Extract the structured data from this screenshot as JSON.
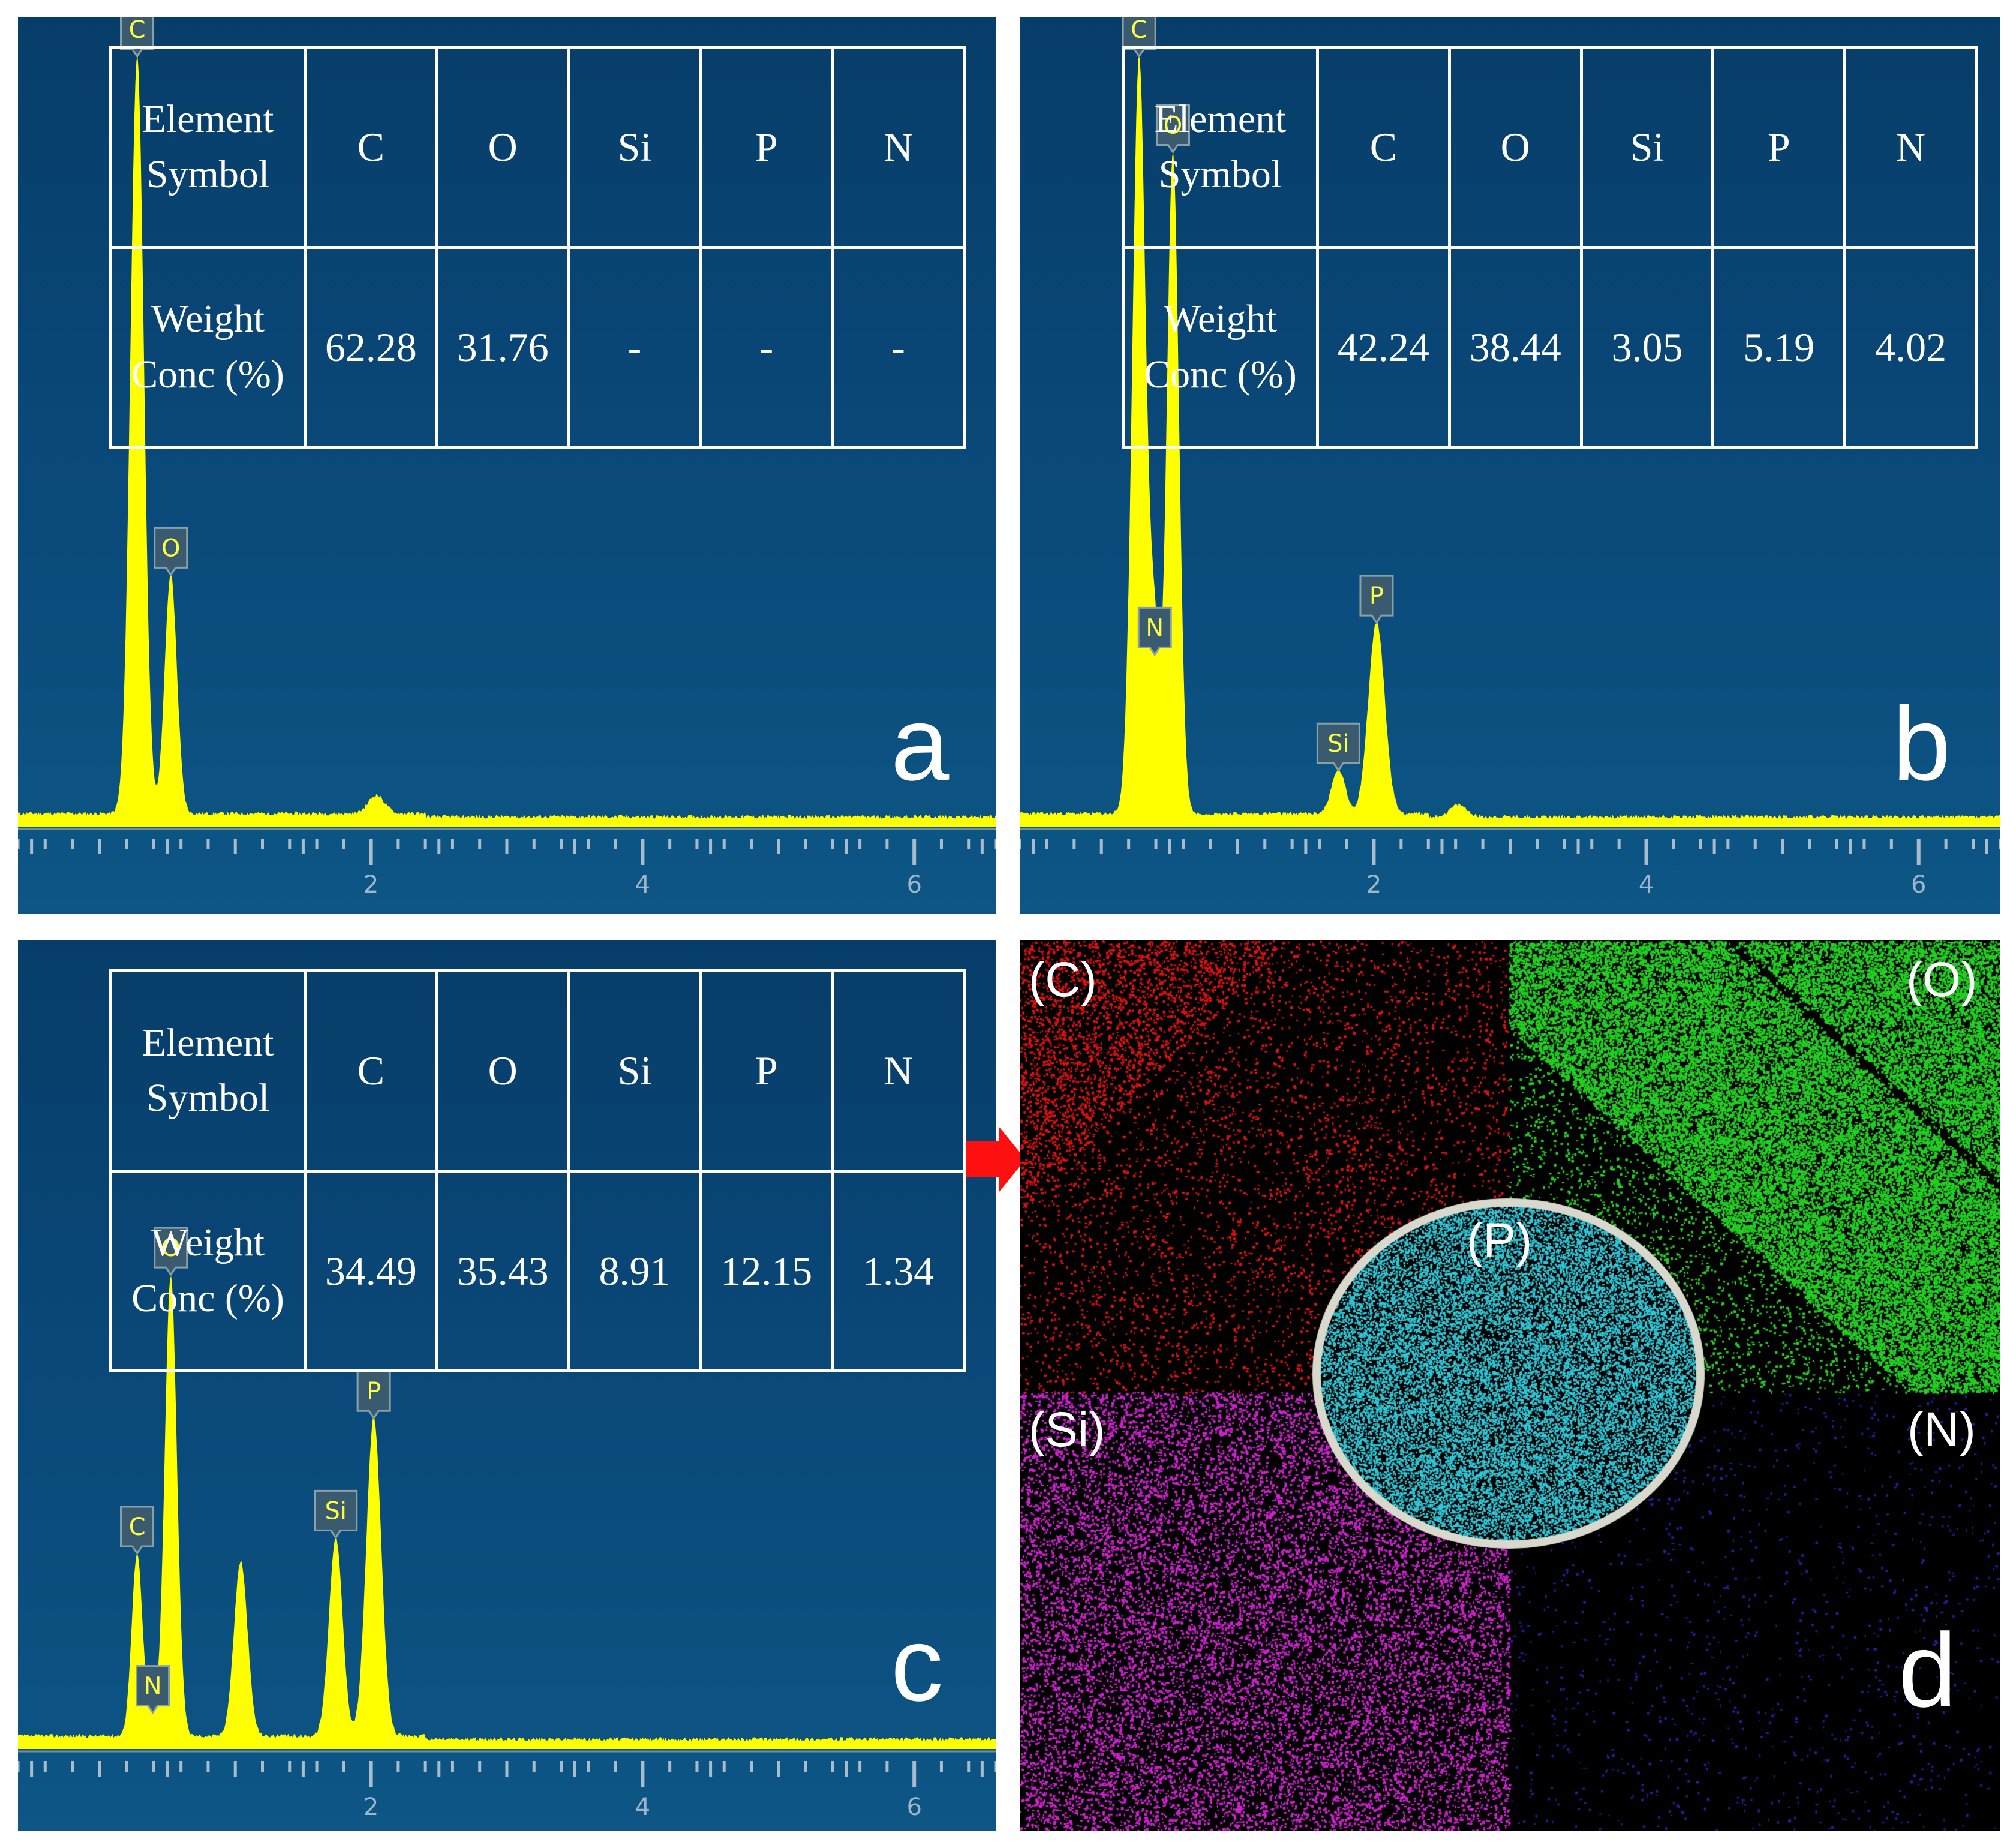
{
  "chart_data": [
    {
      "panel": "a",
      "type": "line",
      "xlim": [
        -0.6,
        6.6
      ],
      "ylim": [
        0,
        100
      ],
      "x_ticks": [
        2,
        4,
        6
      ],
      "peaks": [
        {
          "element": "C",
          "x": 0.277,
          "height": 95,
          "width": 0.05
        },
        {
          "element": "O",
          "x": 0.525,
          "height": 30,
          "width": 0.045
        },
        {
          "element": "",
          "x": 2.04,
          "height": 2.3,
          "width": 0.06
        }
      ],
      "table": {
        "header_label": "Element Symbol",
        "value_label": "Weight Conc (%)",
        "elements": [
          "C",
          "O",
          "Si",
          "P",
          "N"
        ],
        "values": [
          "62.28",
          "31.76",
          "-",
          "-",
          "-"
        ]
      }
    },
    {
      "panel": "b",
      "type": "line",
      "xlim": [
        -0.6,
        6.6
      ],
      "ylim": [
        0,
        100
      ],
      "x_ticks": [
        2,
        4,
        6
      ],
      "peaks": [
        {
          "element": "C",
          "x": 0.277,
          "height": 95,
          "width": 0.05
        },
        {
          "element": "N",
          "x": 0.392,
          "height": 20,
          "width": 0.035
        },
        {
          "element": "O",
          "x": 0.525,
          "height": 83,
          "width": 0.045
        },
        {
          "element": "Si",
          "x": 1.74,
          "height": 5.5,
          "width": 0.05
        },
        {
          "element": "P",
          "x": 2.02,
          "height": 24,
          "width": 0.06
        },
        {
          "element": "",
          "x": 2.62,
          "height": 1.5,
          "width": 0.06
        }
      ],
      "table": {
        "header_label": "Element Symbol",
        "value_label": "Weight Conc (%)",
        "elements": [
          "C",
          "O",
          "Si",
          "P",
          "N"
        ],
        "values": [
          "42.24",
          "38.44",
          "3.05",
          "5.19",
          "4.02"
        ]
      }
    },
    {
      "panel": "c",
      "type": "line",
      "xlim": [
        -0.6,
        6.6
      ],
      "ylim": [
        0,
        100
      ],
      "x_ticks": [
        2,
        4,
        6
      ],
      "peaks": [
        {
          "element": "C",
          "x": 0.277,
          "height": 23,
          "width": 0.04
        },
        {
          "element": "N",
          "x": 0.392,
          "height": 3,
          "width": 0.035
        },
        {
          "element": "O",
          "x": 0.525,
          "height": 58,
          "width": 0.045
        },
        {
          "element": "",
          "x": 1.04,
          "height": 22,
          "width": 0.05
        },
        {
          "element": "Si",
          "x": 1.74,
          "height": 25,
          "width": 0.05
        },
        {
          "element": "P",
          "x": 2.02,
          "height": 40,
          "width": 0.055
        }
      ],
      "table": {
        "header_label": "Element Symbol",
        "value_label": "Weight Conc (%)",
        "elements": [
          "C",
          "O",
          "Si",
          "P",
          "N"
        ],
        "values": [
          "34.49",
          "35.43",
          "8.91",
          "12.15",
          "1.34"
        ]
      }
    }
  ],
  "panel_letters": {
    "a": "a",
    "b": "b",
    "c": "c",
    "d": "d"
  },
  "map_panel": {
    "labels": {
      "C": "(C)",
      "O": "(O)",
      "Si": "(Si)",
      "N": "(N)",
      "P": "(P)"
    },
    "colors": {
      "C": "#e01010",
      "O": "#22d022",
      "Si": "#d020d0",
      "N": "#2020a0",
      "P": "#30c8d8",
      "ring": "#d8d8cc"
    }
  },
  "colors": {
    "spectrum": "#ffff00",
    "arrow": "#ff1010",
    "table_text": "#ffffff"
  }
}
